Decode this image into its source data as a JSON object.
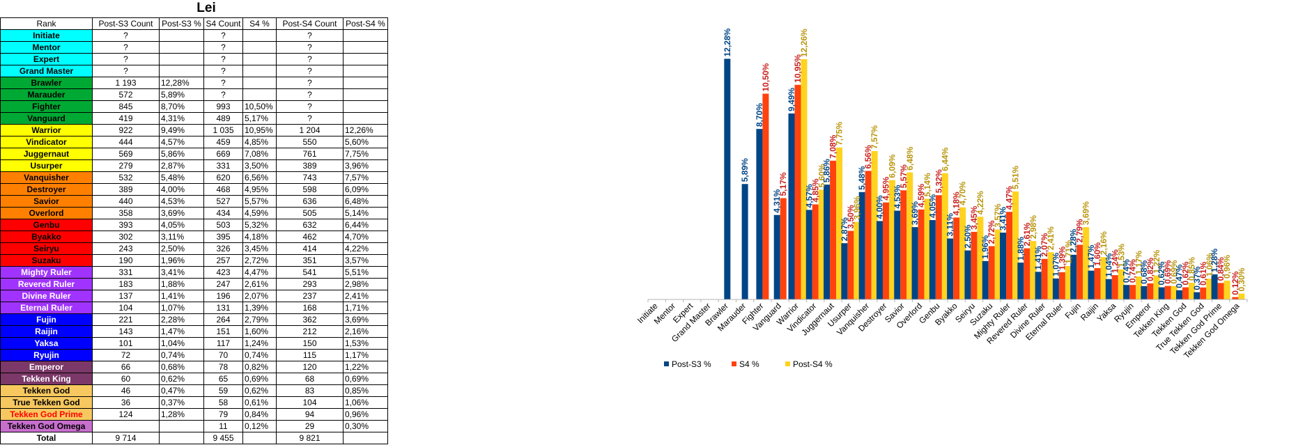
{
  "sheet": {
    "title": "Lei",
    "headers": [
      "Rank",
      "Post-S3 Count",
      "Post-S3 %",
      "S4 Count",
      "S4 %",
      "Post-S4 Count",
      "Post-S4 %"
    ],
    "rows": [
      {
        "rank": "Initiate",
        "bg": "#00ffff",
        "fg": "#000000",
        "c3": "?",
        "p3": "",
        "c4": "?",
        "p4": "",
        "c5": "?",
        "p5": ""
      },
      {
        "rank": "Mentor",
        "bg": "#00ffff",
        "fg": "#000000",
        "c3": "?",
        "p3": "",
        "c4": "?",
        "p4": "",
        "c5": "?",
        "p5": ""
      },
      {
        "rank": "Expert",
        "bg": "#00ffff",
        "fg": "#000000",
        "c3": "?",
        "p3": "",
        "c4": "?",
        "p4": "",
        "c5": "?",
        "p5": ""
      },
      {
        "rank": "Grand Master",
        "bg": "#00ffff",
        "fg": "#000000",
        "c3": "?",
        "p3": "",
        "c4": "?",
        "p4": "",
        "c5": "?",
        "p5": ""
      },
      {
        "rank": "Brawler",
        "bg": "#00a933",
        "fg": "#000000",
        "c3": "1 193",
        "p3": "12,28%",
        "c4": "?",
        "p4": "",
        "c5": "?",
        "p5": ""
      },
      {
        "rank": "Marauder",
        "bg": "#00a933",
        "fg": "#000000",
        "c3": "572",
        "p3": "5,89%",
        "c4": "?",
        "p4": "",
        "c5": "?",
        "p5": ""
      },
      {
        "rank": "Fighter",
        "bg": "#00a933",
        "fg": "#000000",
        "c3": "845",
        "p3": "8,70%",
        "c4": "993",
        "p4": "10,50%",
        "c5": "?",
        "p5": ""
      },
      {
        "rank": "Vanguard",
        "bg": "#00a933",
        "fg": "#000000",
        "c3": "419",
        "p3": "4,31%",
        "c4": "489",
        "p4": "5,17%",
        "c5": "?",
        "p5": ""
      },
      {
        "rank": "Warrior",
        "bg": "#ffff00",
        "fg": "#000000",
        "c3": "922",
        "p3": "9,49%",
        "c4": "1 035",
        "p4": "10,95%",
        "c5": "1 204",
        "p5": "12,26%"
      },
      {
        "rank": "Vindicator",
        "bg": "#ffff00",
        "fg": "#000000",
        "c3": "444",
        "p3": "4,57%",
        "c4": "459",
        "p4": "4,85%",
        "c5": "550",
        "p5": "5,60%"
      },
      {
        "rank": "Juggernaut",
        "bg": "#ffff00",
        "fg": "#000000",
        "c3": "569",
        "p3": "5,86%",
        "c4": "669",
        "p4": "7,08%",
        "c5": "761",
        "p5": "7,75%"
      },
      {
        "rank": "Usurper",
        "bg": "#ffff00",
        "fg": "#000000",
        "c3": "279",
        "p3": "2,87%",
        "c4": "331",
        "p4": "3,50%",
        "c5": "389",
        "p5": "3,96%"
      },
      {
        "rank": "Vanquisher",
        "bg": "#ff8000",
        "fg": "#000000",
        "c3": "532",
        "p3": "5,48%",
        "c4": "620",
        "p4": "6,56%",
        "c5": "743",
        "p5": "7,57%"
      },
      {
        "rank": "Destroyer",
        "bg": "#ff8000",
        "fg": "#000000",
        "c3": "389",
        "p3": "4,00%",
        "c4": "468",
        "p4": "4,95%",
        "c5": "598",
        "p5": "6,09%"
      },
      {
        "rank": "Savior",
        "bg": "#ff8000",
        "fg": "#000000",
        "c3": "440",
        "p3": "4,53%",
        "c4": "527",
        "p4": "5,57%",
        "c5": "636",
        "p5": "6,48%"
      },
      {
        "rank": "Overlord",
        "bg": "#ff8000",
        "fg": "#000000",
        "c3": "358",
        "p3": "3,69%",
        "c4": "434",
        "p4": "4,59%",
        "c5": "505",
        "p5": "5,14%"
      },
      {
        "rank": "Genbu",
        "bg": "#ff0000",
        "fg": "#000000",
        "c3": "393",
        "p3": "4,05%",
        "c4": "503",
        "p4": "5,32%",
        "c5": "632",
        "p5": "6,44%"
      },
      {
        "rank": "Byakko",
        "bg": "#ff0000",
        "fg": "#000000",
        "c3": "302",
        "p3": "3,11%",
        "c4": "395",
        "p4": "4,18%",
        "c5": "462",
        "p5": "4,70%"
      },
      {
        "rank": "Seiryu",
        "bg": "#ff0000",
        "fg": "#000000",
        "c3": "243",
        "p3": "2,50%",
        "c4": "326",
        "p4": "3,45%",
        "c5": "414",
        "p5": "4,22%"
      },
      {
        "rank": "Suzaku",
        "bg": "#ff0000",
        "fg": "#000000",
        "c3": "190",
        "p3": "1,96%",
        "c4": "257",
        "p4": "2,72%",
        "c5": "351",
        "p5": "3,57%"
      },
      {
        "rank": "Mighty Ruler",
        "bg": "#a033ff",
        "fg": "#ffffff",
        "c3": "331",
        "p3": "3,41%",
        "c4": "423",
        "p4": "4,47%",
        "c5": "541",
        "p5": "5,51%"
      },
      {
        "rank": "Revered Ruler",
        "bg": "#a033ff",
        "fg": "#ffffff",
        "c3": "183",
        "p3": "1,88%",
        "c4": "247",
        "p4": "2,61%",
        "c5": "293",
        "p5": "2,98%"
      },
      {
        "rank": "Divine Ruler",
        "bg": "#a033ff",
        "fg": "#ffffff",
        "c3": "137",
        "p3": "1,41%",
        "c4": "196",
        "p4": "2,07%",
        "c5": "237",
        "p5": "2,41%"
      },
      {
        "rank": "Eternal Ruler",
        "bg": "#a033ff",
        "fg": "#ffffff",
        "c3": "104",
        "p3": "1,07%",
        "c4": "131",
        "p4": "1,39%",
        "c5": "168",
        "p5": "1,71%"
      },
      {
        "rank": "Fujin",
        "bg": "#0000ff",
        "fg": "#ffffff",
        "c3": "221",
        "p3": "2,28%",
        "c4": "264",
        "p4": "2,79%",
        "c5": "362",
        "p5": "3,69%"
      },
      {
        "rank": "Raijin",
        "bg": "#0000ff",
        "fg": "#ffffff",
        "c3": "143",
        "p3": "1,47%",
        "c4": "151",
        "p4": "1,60%",
        "c5": "212",
        "p5": "2,16%"
      },
      {
        "rank": "Yaksa",
        "bg": "#0000ff",
        "fg": "#ffffff",
        "c3": "101",
        "p3": "1,04%",
        "c4": "117",
        "p4": "1,24%",
        "c5": "150",
        "p5": "1,53%"
      },
      {
        "rank": "Ryujin",
        "bg": "#0000ff",
        "fg": "#ffffff",
        "c3": "72",
        "p3": "0,74%",
        "c4": "70",
        "p4": "0,74%",
        "c5": "115",
        "p5": "1,17%"
      },
      {
        "rank": "Emperor",
        "bg": "#7b3868",
        "fg": "#ffffff",
        "c3": "66",
        "p3": "0,68%",
        "c4": "78",
        "p4": "0,82%",
        "c5": "120",
        "p5": "1,22%"
      },
      {
        "rank": "Tekken King",
        "bg": "#7b3868",
        "fg": "#ffffff",
        "c3": "60",
        "p3": "0,62%",
        "c4": "65",
        "p4": "0,69%",
        "c5": "68",
        "p5": "0,69%"
      },
      {
        "rank": "Tekken God",
        "bg": "#f6c85f",
        "fg": "#000000",
        "c3": "46",
        "p3": "0,47%",
        "c4": "59",
        "p4": "0,62%",
        "c5": "83",
        "p5": "0,85%"
      },
      {
        "rank": "True Tekken God",
        "bg": "#f6c85f",
        "fg": "#000000",
        "c3": "36",
        "p3": "0,37%",
        "c4": "58",
        "p4": "0,61%",
        "c5": "104",
        "p5": "1,06%"
      },
      {
        "rank": "Tekken God Prime",
        "bg": "#f6c85f",
        "fg": "#ff0000",
        "c3": "124",
        "p3": "1,28%",
        "c4": "79",
        "p4": "0,84%",
        "c5": "94",
        "p5": "0,96%"
      },
      {
        "rank": "Tekken God Omega",
        "bg": "#c86fce",
        "fg": "#000000",
        "c3": "",
        "p3": "",
        "c4": "11",
        "p4": "0,12%",
        "c5": "29",
        "p5": "0,30%"
      }
    ],
    "total": {
      "label": "Total",
      "c3": "9 714",
      "c4": "9 455",
      "c5": "9 821"
    }
  },
  "chart_data": {
    "type": "bar",
    "title": "",
    "xlabel": "",
    "ylabel": "",
    "grid": false,
    "legend_position": "bottom",
    "ylim": [
      0,
      14
    ],
    "categories": [
      "Initiate",
      "Mentor",
      "Expert",
      "Grand Master",
      "Brawler",
      "Marauder",
      "Fighter",
      "Vanguard",
      "Warrior",
      "Vindicator",
      "Juggernaut",
      "Usurper",
      "Vanquisher",
      "Destroyer",
      "Savior",
      "Overlord",
      "Genbu",
      "Byakko",
      "Seiryu",
      "Suzaku",
      "Mighty Ruler",
      "Revered Ruler",
      "Divine Ruler",
      "Eternal Ruler",
      "Fujin",
      "Raijin",
      "Yaksa",
      "Ryujin",
      "Emperor",
      "Tekken King",
      "Tekken God",
      "True Tekken God",
      "Tekken God Prime",
      "Tekken God Omega"
    ],
    "series": [
      {
        "name": "Post-S3 %",
        "color": "#004586",
        "label_color": "#004586",
        "values": [
          null,
          null,
          null,
          null,
          12.28,
          5.89,
          8.7,
          4.31,
          9.49,
          4.57,
          5.86,
          2.87,
          5.48,
          4.0,
          4.53,
          3.69,
          4.05,
          3.11,
          2.5,
          1.96,
          3.41,
          1.88,
          1.41,
          1.07,
          2.28,
          1.47,
          1.04,
          0.74,
          0.68,
          0.62,
          0.47,
          0.37,
          1.28,
          null
        ],
        "labels": [
          "",
          "",
          "",
          "",
          "12,28%",
          "5,89%",
          "8,70%",
          "4,31%",
          "9,49%",
          "4,57%",
          "5,86%",
          "2,87%",
          "5,48%",
          "4,00%",
          "4,53%",
          "3,69%",
          "4,05%",
          "3,11%",
          "2,50%",
          "1,96%",
          "3,41%",
          "1,88%",
          "1,41%",
          "1,07%",
          "2,28%",
          "1,47%",
          "1,04%",
          "0,74%",
          "0,68%",
          "0,62%",
          "0,47%",
          "0,37%",
          "1,28%",
          ""
        ]
      },
      {
        "name": "S4 %",
        "color": "#ff420e",
        "label_color": "#c9211e",
        "values": [
          null,
          null,
          null,
          null,
          null,
          null,
          10.5,
          5.17,
          10.95,
          4.85,
          7.08,
          3.5,
          6.56,
          4.95,
          5.57,
          4.59,
          5.32,
          4.18,
          3.45,
          2.72,
          4.47,
          2.61,
          2.07,
          1.39,
          2.79,
          1.6,
          1.24,
          0.74,
          0.82,
          0.69,
          0.62,
          0.61,
          0.84,
          0.12
        ],
        "labels": [
          "",
          "",
          "",
          "",
          "",
          "",
          "10,50%",
          "5,17%",
          "10,95%",
          "4,85%",
          "7,08%",
          "3,50%",
          "6,56%",
          "4,95%",
          "5,57%",
          "4,59%",
          "5,32%",
          "4,18%",
          "3,45%",
          "2,72%",
          "4,47%",
          "2,61%",
          "2,07%",
          "1,39%",
          "2,79%",
          "1,60%",
          "1,24%",
          "0,74%",
          "0,82%",
          "0,69%",
          "0,62%",
          "0,61%",
          "0,84%",
          "0,12%"
        ]
      },
      {
        "name": "Post-S4 %",
        "color": "#ffd320",
        "label_color": "#b8960c",
        "values": [
          null,
          null,
          null,
          null,
          null,
          null,
          null,
          null,
          12.26,
          5.6,
          7.75,
          3.96,
          7.57,
          6.09,
          6.48,
          5.14,
          6.44,
          4.7,
          4.22,
          3.57,
          5.51,
          2.98,
          2.41,
          1.71,
          3.69,
          2.16,
          1.53,
          1.17,
          1.22,
          0.69,
          0.85,
          1.06,
          0.96,
          0.3
        ],
        "labels": [
          "",
          "",
          "",
          "",
          "",
          "",
          "",
          "",
          "12,26%",
          "5,60%",
          "7,75%",
          "3,96%",
          "7,57%",
          "6,09%",
          "6,48%",
          "5,14%",
          "6,44%",
          "4,70%",
          "4,22%",
          "3,57%",
          "5,51%",
          "2,98%",
          "2,41%",
          "1,71%",
          "3,69%",
          "2,16%",
          "1,53%",
          "1,17%",
          "1,22%",
          "0,69%",
          "0,85%",
          "1,06%",
          "0,96%",
          "0,30%"
        ]
      }
    ]
  }
}
